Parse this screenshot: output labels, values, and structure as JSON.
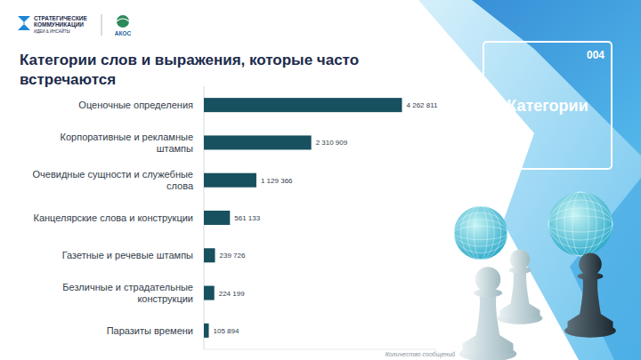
{
  "page": {
    "logo": {
      "lines": [
        "СТРАТЕГИЧЕСКИЕ",
        "КОММУНИКАЦИИ",
        "ИДЕИ & ИНСАЙТЫ"
      ],
      "partner": "АКОС"
    },
    "badge": {
      "number": "004",
      "title": "Категории"
    }
  },
  "chart_data": {
    "type": "bar",
    "orientation": "horizontal",
    "title": "Категории слов и выражения, которые часто встречаются",
    "categories": [
      "Оценочные определения",
      "Корпоративные и рекламные штампы",
      "Очевидные сущности и служебные слова",
      "Канцелярские слова и конструкции",
      "Газетные и речевые штампы",
      "Безличные и страдательные конструкции",
      "Паразиты времени"
    ],
    "values": [
      4262811,
      2310909,
      1129366,
      561133,
      239726,
      224199,
      105894
    ],
    "value_labels": [
      "4 262 811",
      "2 310 909",
      "1 129 366",
      "561 133",
      "239 726",
      "224 199",
      "105 894"
    ],
    "color": "#17505f",
    "xlim": [
      0,
      5000000
    ],
    "xlabel": "Количество сообщений",
    "data_labels": true,
    "tick_labels": "y",
    "grid": false
  }
}
